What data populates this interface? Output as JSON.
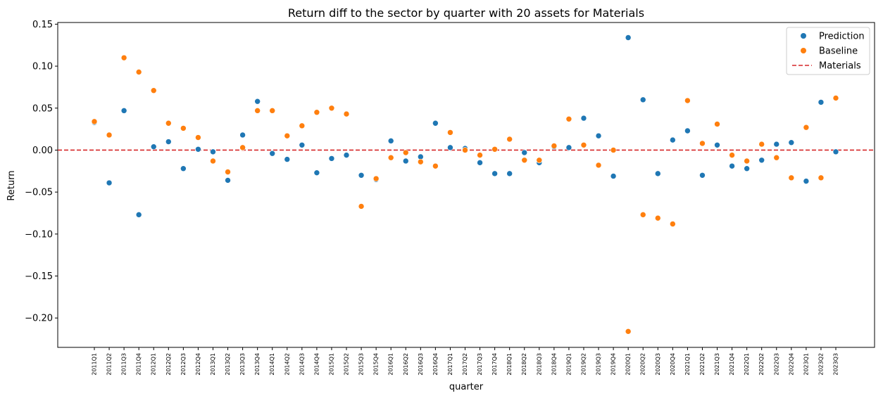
{
  "chart_data": {
    "type": "scatter",
    "title": "Return diff to the sector by quarter with 20 assets for Materials",
    "xlabel": "quarter",
    "ylabel": "Return",
    "ylim": [
      -0.235,
      0.152
    ],
    "yticks": [
      -0.2,
      -0.15,
      -0.1,
      -0.05,
      0.0,
      0.05,
      0.1,
      0.15
    ],
    "ytick_labels": [
      "−0.20",
      "−0.15",
      "−0.10",
      "−0.05",
      "0.00",
      "0.05",
      "0.10",
      "0.15"
    ],
    "categories": [
      "2011Q1",
      "2011Q2",
      "2011Q3",
      "2011Q4",
      "2012Q1",
      "2012Q2",
      "2012Q3",
      "2012Q4",
      "2013Q1",
      "2013Q2",
      "2013Q3",
      "2013Q4",
      "2014Q1",
      "2014Q2",
      "2014Q3",
      "2014Q4",
      "2015Q1",
      "2015Q2",
      "2015Q3",
      "2015Q4",
      "2016Q1",
      "2016Q2",
      "2016Q3",
      "2016Q4",
      "2017Q1",
      "2017Q2",
      "2017Q3",
      "2017Q4",
      "2018Q1",
      "2018Q2",
      "2018Q3",
      "2018Q4",
      "2019Q1",
      "2019Q2",
      "2019Q3",
      "2019Q4",
      "2020Q1",
      "2020Q2",
      "2020Q3",
      "2020Q4",
      "2021Q1",
      "2021Q2",
      "2021Q3",
      "2021Q4",
      "2022Q1",
      "2022Q2",
      "2022Q3",
      "2022Q4",
      "2023Q1",
      "2023Q2",
      "2023Q3"
    ],
    "series": [
      {
        "name": "Prediction",
        "color": "#1f77b4",
        "values": [
          0.033,
          -0.039,
          0.047,
          -0.077,
          0.004,
          0.01,
          -0.022,
          0.001,
          -0.002,
          -0.036,
          0.018,
          0.058,
          -0.004,
          -0.011,
          0.006,
          -0.027,
          -0.01,
          -0.006,
          -0.03,
          -0.035,
          0.011,
          -0.013,
          -0.008,
          0.032,
          0.003,
          0.002,
          -0.015,
          -0.028,
          -0.028,
          -0.003,
          -0.015,
          0.004,
          0.003,
          0.038,
          0.017,
          -0.031,
          0.134,
          0.06,
          -0.028,
          0.012,
          0.023,
          -0.03,
          0.006,
          -0.019,
          -0.022,
          -0.012,
          0.007,
          0.009,
          -0.037,
          0.057,
          -0.002
        ]
      },
      {
        "name": "Baseline",
        "color": "#ff7f0e",
        "values": [
          0.034,
          0.018,
          0.11,
          0.093,
          0.071,
          0.032,
          0.026,
          0.015,
          -0.013,
          -0.026,
          0.003,
          0.047,
          0.047,
          0.017,
          0.029,
          0.045,
          0.05,
          0.043,
          -0.067,
          -0.034,
          -0.009,
          -0.003,
          -0.014,
          -0.019,
          0.021,
          0.0,
          -0.006,
          0.001,
          0.013,
          -0.012,
          -0.012,
          0.005,
          0.037,
          0.006,
          -0.018,
          0.0,
          -0.216,
          -0.077,
          -0.081,
          -0.088,
          0.059,
          0.008,
          0.031,
          -0.006,
          -0.013,
          0.007,
          -0.009,
          -0.033,
          0.027,
          -0.033,
          0.062
        ]
      }
    ],
    "reference_line": {
      "name": "Materials",
      "value": 0.0,
      "color": "#d62728",
      "style": "dashed"
    },
    "legend": {
      "position": "upper right",
      "items": [
        "Prediction",
        "Baseline",
        "Materials"
      ]
    },
    "grid": false
  }
}
